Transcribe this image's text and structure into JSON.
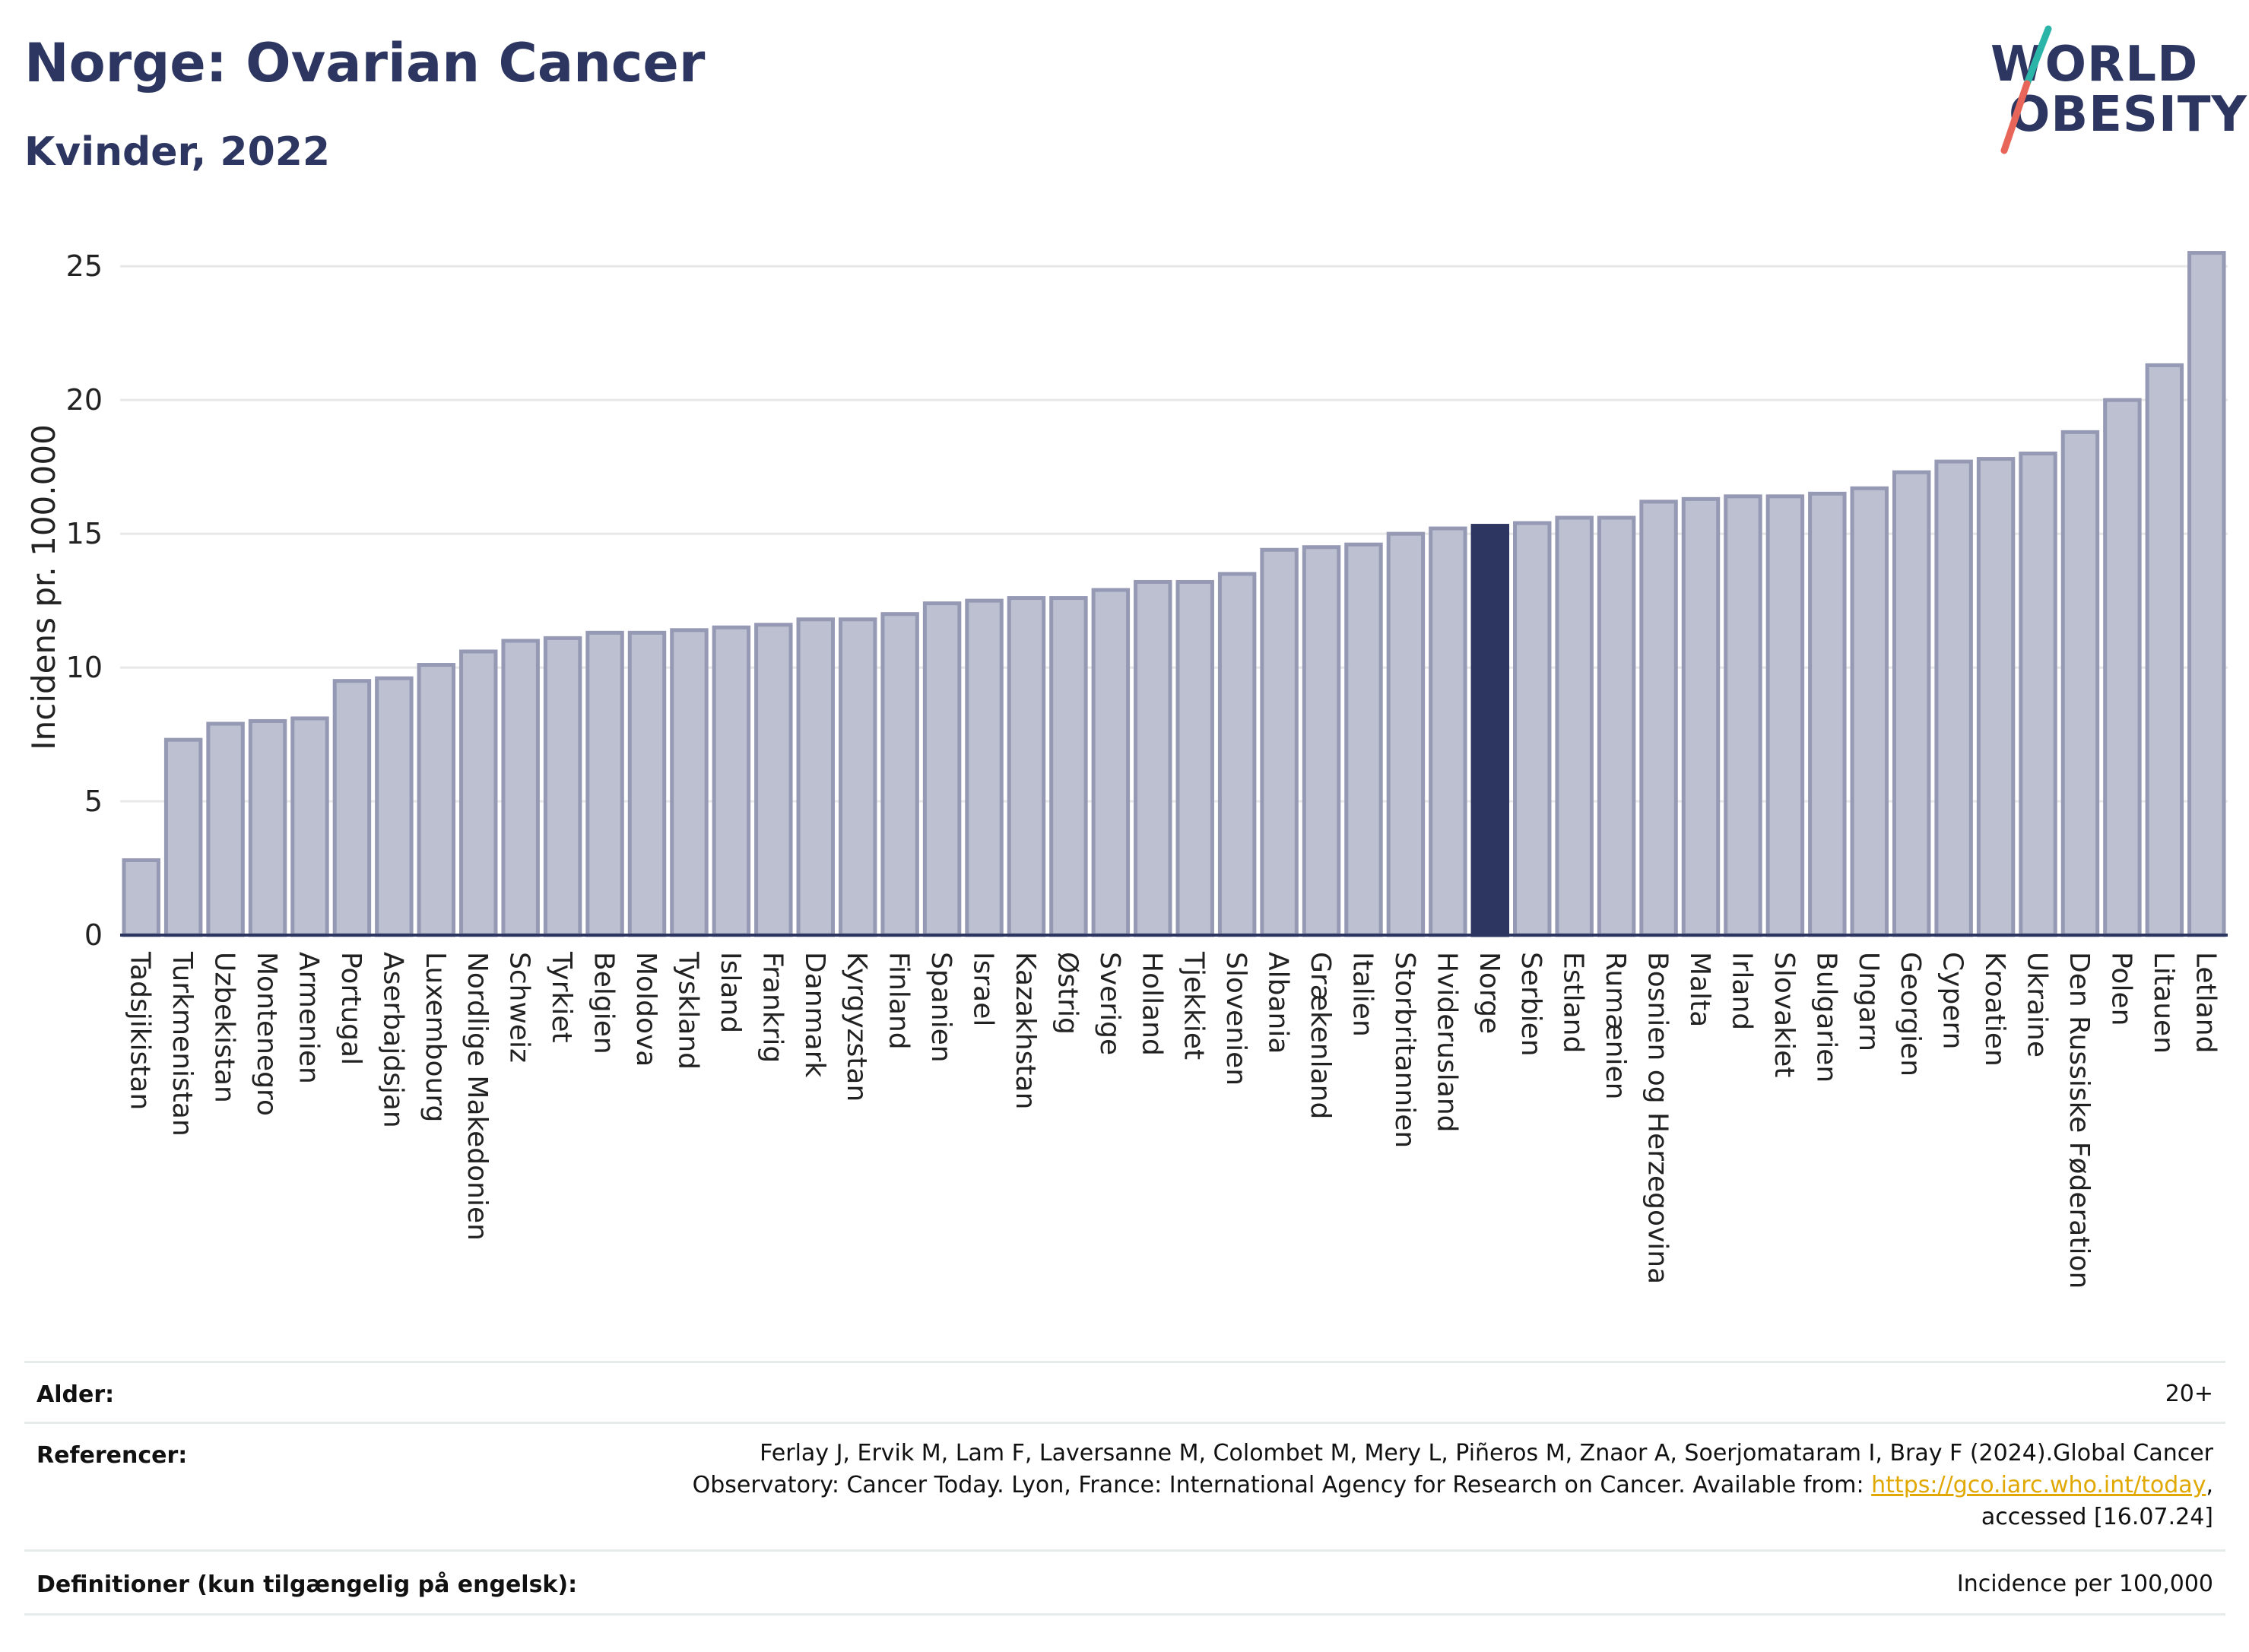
{
  "header": {
    "title": "Norge: Ovarian Cancer",
    "subtitle": "Kvinder, 2022"
  },
  "logo": {
    "line1": "WORLD",
    "line2": "OBESITY",
    "colors": {
      "text": "#2c3660",
      "slash_top": "#2bb5a9",
      "slash_bottom": "#e8655a"
    }
  },
  "chart_data": {
    "type": "bar",
    "title": "",
    "xlabel": "",
    "ylabel": "Incidens pr. 100.000",
    "ylim": [
      0,
      26
    ],
    "yticks": [
      0,
      5,
      10,
      15,
      20,
      25
    ],
    "grid": true,
    "highlight": "Norge",
    "colors": {
      "bar": "#bcc0d0",
      "bar_edge": "#9599b4",
      "highlight": "#2c3660",
      "grid": "#e8e8e8",
      "axis": "#2c3660"
    },
    "categories": [
      "Tadsjikistan",
      "Turkmenistan",
      "Uzbekistan",
      "Montenegro",
      "Armenien",
      "Portugal",
      "Aserbajdsjan",
      "Luxembourg",
      "Nordlige Makedonien",
      "Schweiz",
      "Tyrkiet",
      "Belgien",
      "Moldova",
      "Tyskland",
      "Island",
      "Frankrig",
      "Danmark",
      "Kyrgyzstan",
      "Finland",
      "Spanien",
      "Israel",
      "Kazakhstan",
      "Østrig",
      "Sverige",
      "Holland",
      "Tjekkiet",
      "Slovenien",
      "Albania",
      "Grækenland",
      "Italien",
      "Storbritannien",
      "Hviderusland",
      "Norge",
      "Serbien",
      "Estland",
      "Rumænien",
      "Bosnien og Herzegovina",
      "Malta",
      "Irland",
      "Slovakiet",
      "Bulgarien",
      "Ungarn",
      "Georgien",
      "Cypern",
      "Kroatien",
      "Ukraine",
      "Den Russiske Føderation",
      "Polen",
      "Litauen",
      "Letland"
    ],
    "values": [
      2.8,
      7.3,
      7.9,
      8.0,
      8.1,
      9.5,
      9.6,
      10.1,
      10.6,
      11.0,
      11.1,
      11.3,
      11.3,
      11.4,
      11.5,
      11.6,
      11.8,
      11.8,
      12.0,
      12.4,
      12.5,
      12.6,
      12.6,
      12.9,
      13.2,
      13.2,
      13.5,
      14.4,
      14.5,
      14.6,
      15.0,
      15.2,
      15.3,
      15.4,
      15.6,
      15.6,
      16.2,
      16.3,
      16.4,
      16.4,
      16.5,
      16.7,
      17.3,
      17.7,
      17.8,
      18.0,
      18.8,
      20.0,
      21.3,
      25.5
    ]
  },
  "info": {
    "age_label": "Alder:",
    "age_value": "20+",
    "refs_label": "Referencer:",
    "refs_line1": "Ferlay J, Ervik M, Lam F, Laversanne M, Colombet M, Mery L, Piñeros M, Znaor A, Soerjomataram I, Bray F (2024).Global Cancer",
    "refs_line2_prefix": "Observatory: Cancer Today. Lyon, France: International Agency for Research on Cancer. Available from: ",
    "refs_link": "https://gco.iarc.who.int/today",
    "refs_line2_suffix": ",",
    "refs_line3": "accessed [16.07.24]",
    "def_label": "Definitioner (kun tilgængelig på engelsk):",
    "def_value": "Incidence per 100,000"
  }
}
